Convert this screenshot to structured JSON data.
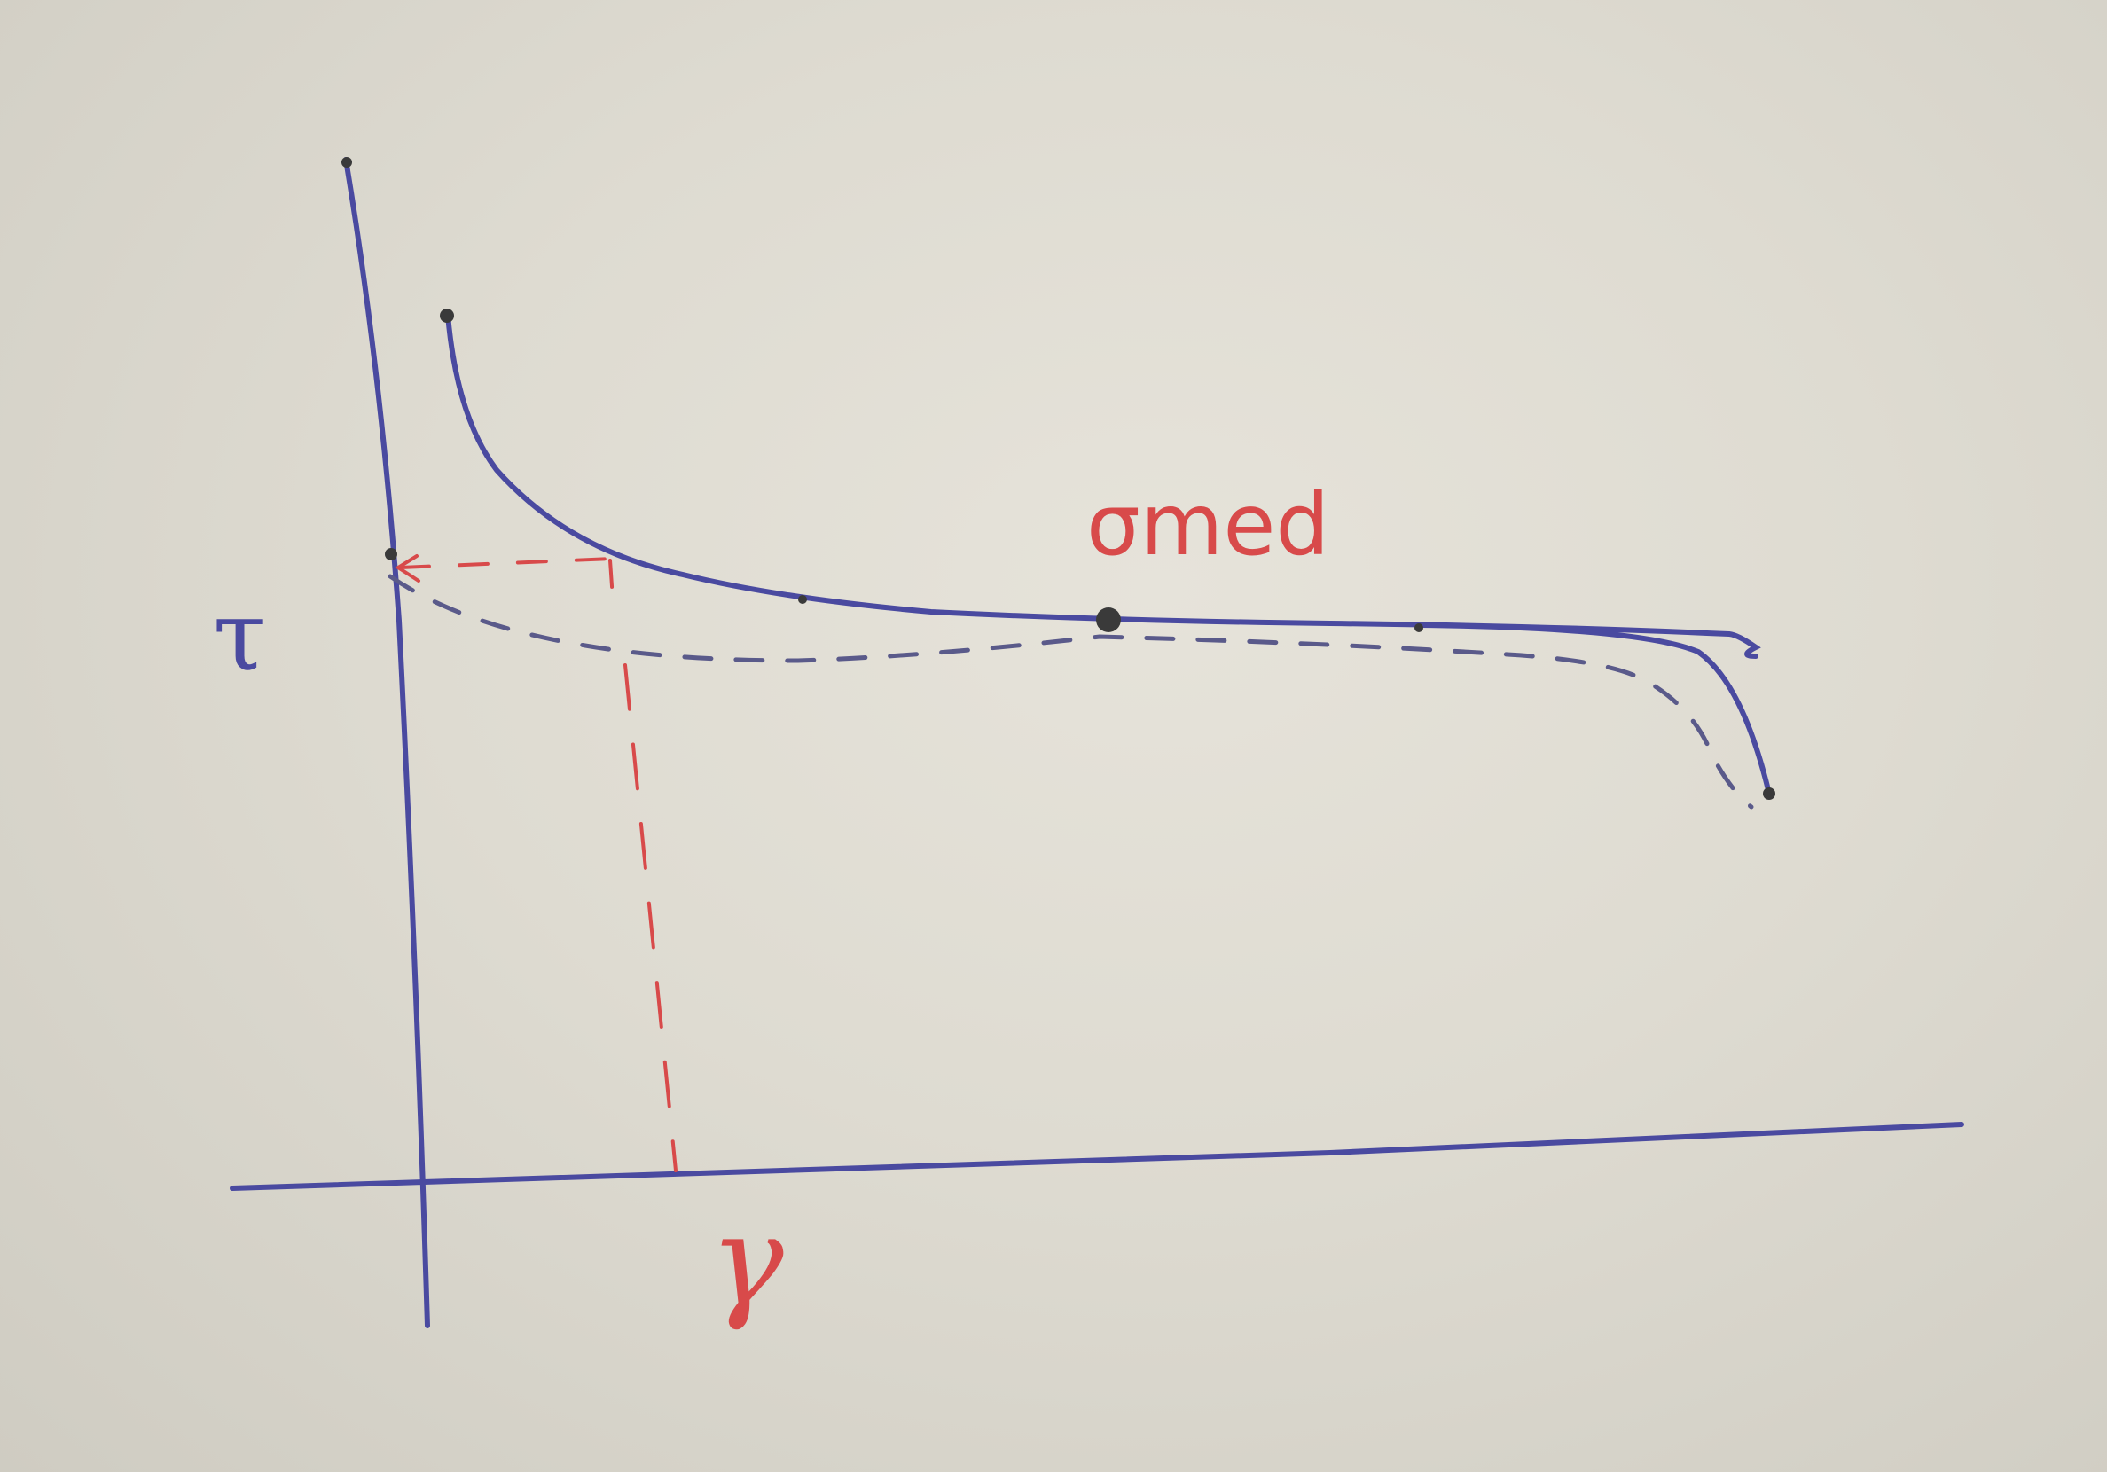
{
  "labels": {
    "y_axis": "τ",
    "x_axis": "γ",
    "curve": "σmed"
  },
  "colors": {
    "axes": "#4a4aa0",
    "curve": "#4a4aa0",
    "dashed_curve": "#5a5a8a",
    "guides": "#d84a4a",
    "label_red": "#d84a4a",
    "dots": "#3a3a3a"
  }
}
